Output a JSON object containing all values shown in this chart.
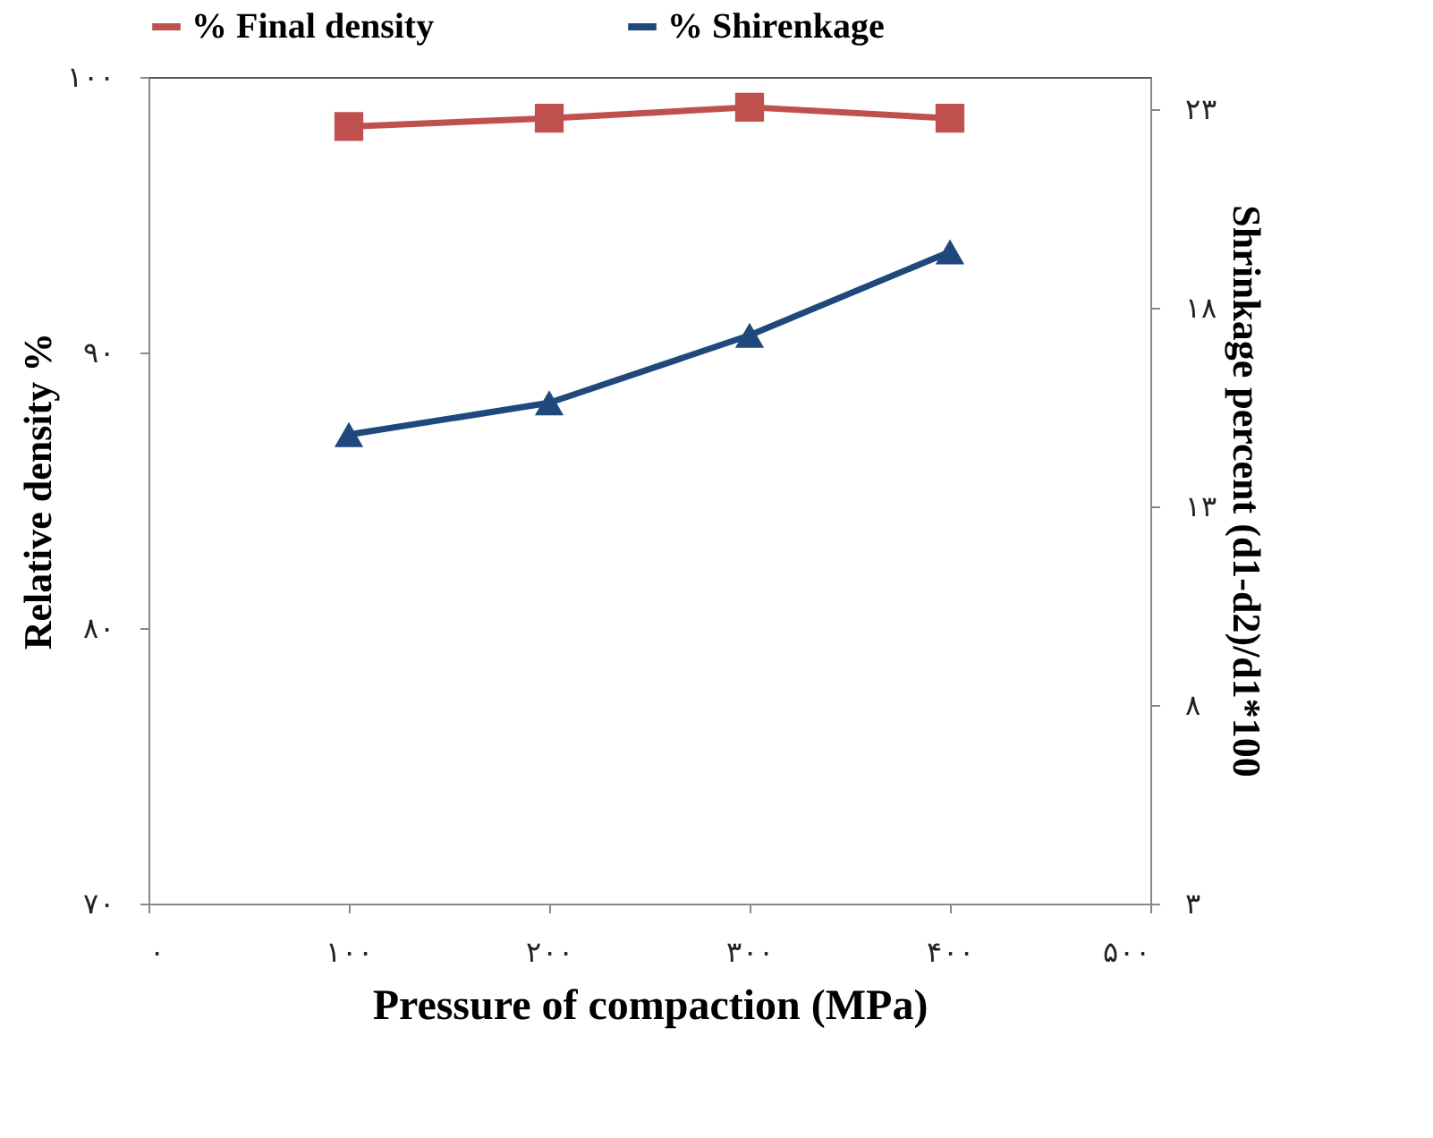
{
  "chart_data": {
    "type": "line",
    "xlabel": "Pressure of compaction (MPa)",
    "ylabel": "Relative density %",
    "y2label": "Shrinkage percent (d1-d2)/d1*100",
    "x": [
      100,
      200,
      300,
      400
    ],
    "xlim": [
      0,
      500
    ],
    "xticks": [
      {
        "value": 0,
        "label": "۰"
      },
      {
        "value": 100,
        "label": "۱۰۰"
      },
      {
        "value": 200,
        "label": "۲۰۰"
      },
      {
        "value": 300,
        "label": "۳۰۰"
      },
      {
        "value": 400,
        "label": "۴۰۰"
      },
      {
        "value": 500,
        "label": "۵۰۰"
      }
    ],
    "ylim": [
      70,
      100
    ],
    "yticks": [
      {
        "value": 70,
        "label": "۷۰"
      },
      {
        "value": 80,
        "label": "۸۰"
      },
      {
        "value": 90,
        "label": "۹۰"
      },
      {
        "value": 100,
        "label": "۱۰۰"
      }
    ],
    "y2lim": [
      3,
      23.8
    ],
    "y2ticks": [
      {
        "value": 3,
        "label": "۳"
      },
      {
        "value": 8,
        "label": "۸"
      },
      {
        "value": 13,
        "label": "۱۳"
      },
      {
        "value": 18,
        "label": "۱۸"
      },
      {
        "value": 23,
        "label": "۲۳"
      }
    ],
    "series": [
      {
        "name": "% Final density",
        "color": "#c0504d",
        "marker": "square",
        "values": [
          98.2,
          98.5,
          98.9,
          98.5
        ]
      },
      {
        "name": "% Shirenkage",
        "color": "#1f497d",
        "marker": "triangle",
        "axis": "y2",
        "values": [
          14.8,
          15.6,
          17.3,
          19.4
        ]
      }
    ],
    "legend": "top",
    "grid": false
  }
}
